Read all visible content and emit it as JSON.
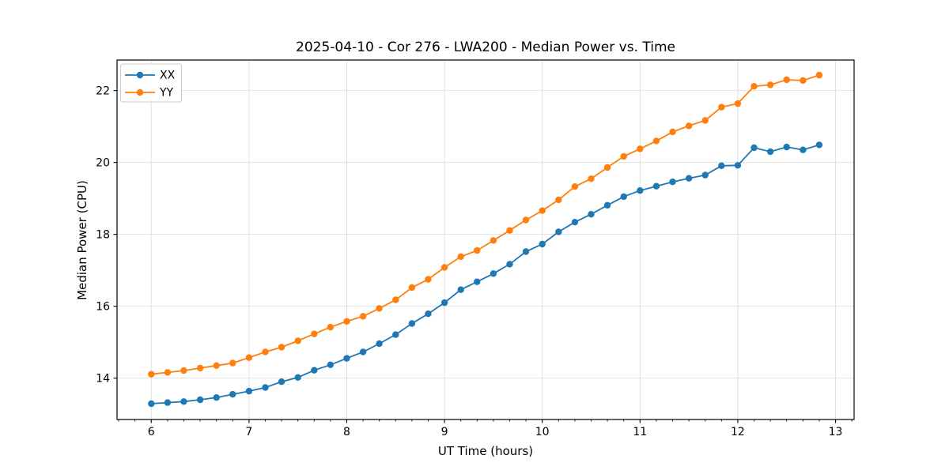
{
  "page": {
    "background": "#ffffff",
    "grid_color": "#e0e0e0",
    "spine_color": "#000000"
  },
  "chart_data": {
    "type": "line",
    "title": "2025-04-10 - Cor 276 - LWA200 - Median Power vs. Time",
    "xlabel": "UT Time (hours)",
    "ylabel": "Median Power (CPU)",
    "xlim": [
      5.65,
      13.19
    ],
    "ylim": [
      12.85,
      22.85
    ],
    "xticks": [
      6,
      7,
      8,
      9,
      10,
      11,
      12,
      13
    ],
    "yticks": [
      14,
      16,
      18,
      20,
      22
    ],
    "x_minor_step": 0.1666667,
    "grid": true,
    "legend_position": "upper-left",
    "x": [
      6.0,
      6.167,
      6.333,
      6.5,
      6.667,
      6.833,
      7.0,
      7.167,
      7.333,
      7.5,
      7.667,
      7.833,
      8.0,
      8.167,
      8.333,
      8.5,
      8.667,
      8.833,
      9.0,
      9.167,
      9.333,
      9.5,
      9.667,
      9.833,
      10.0,
      10.167,
      10.333,
      10.5,
      10.667,
      10.833,
      11.0,
      11.167,
      11.333,
      11.5,
      11.667,
      11.833,
      12.0,
      12.167,
      12.333,
      12.5,
      12.667,
      12.833
    ],
    "series": [
      {
        "name": "XX",
        "color": "#1f77b4",
        "marker": "circle",
        "values": [
          13.29,
          13.32,
          13.35,
          13.4,
          13.46,
          13.55,
          13.64,
          13.74,
          13.9,
          14.02,
          14.22,
          14.37,
          14.55,
          14.73,
          14.96,
          15.21,
          15.52,
          15.79,
          16.1,
          16.46,
          16.68,
          16.91,
          17.17,
          17.52,
          17.73,
          18.07,
          18.34,
          18.56,
          18.81,
          19.05,
          19.22,
          19.34,
          19.46,
          19.56,
          19.65,
          19.91,
          19.92,
          20.41,
          20.3,
          20.43,
          20.35,
          20.49
        ]
      },
      {
        "name": "YY",
        "color": "#ff7f0e",
        "marker": "circle",
        "values": [
          14.11,
          14.16,
          14.21,
          14.28,
          14.35,
          14.42,
          14.57,
          14.73,
          14.86,
          15.04,
          15.23,
          15.42,
          15.58,
          15.72,
          15.94,
          16.18,
          16.52,
          16.75,
          17.08,
          17.38,
          17.55,
          17.83,
          18.11,
          18.4,
          18.66,
          18.96,
          19.33,
          19.55,
          19.86,
          20.17,
          20.38,
          20.6,
          20.85,
          21.02,
          21.17,
          21.54,
          21.64,
          22.12,
          22.16,
          22.3,
          22.28,
          22.43
        ]
      }
    ]
  }
}
